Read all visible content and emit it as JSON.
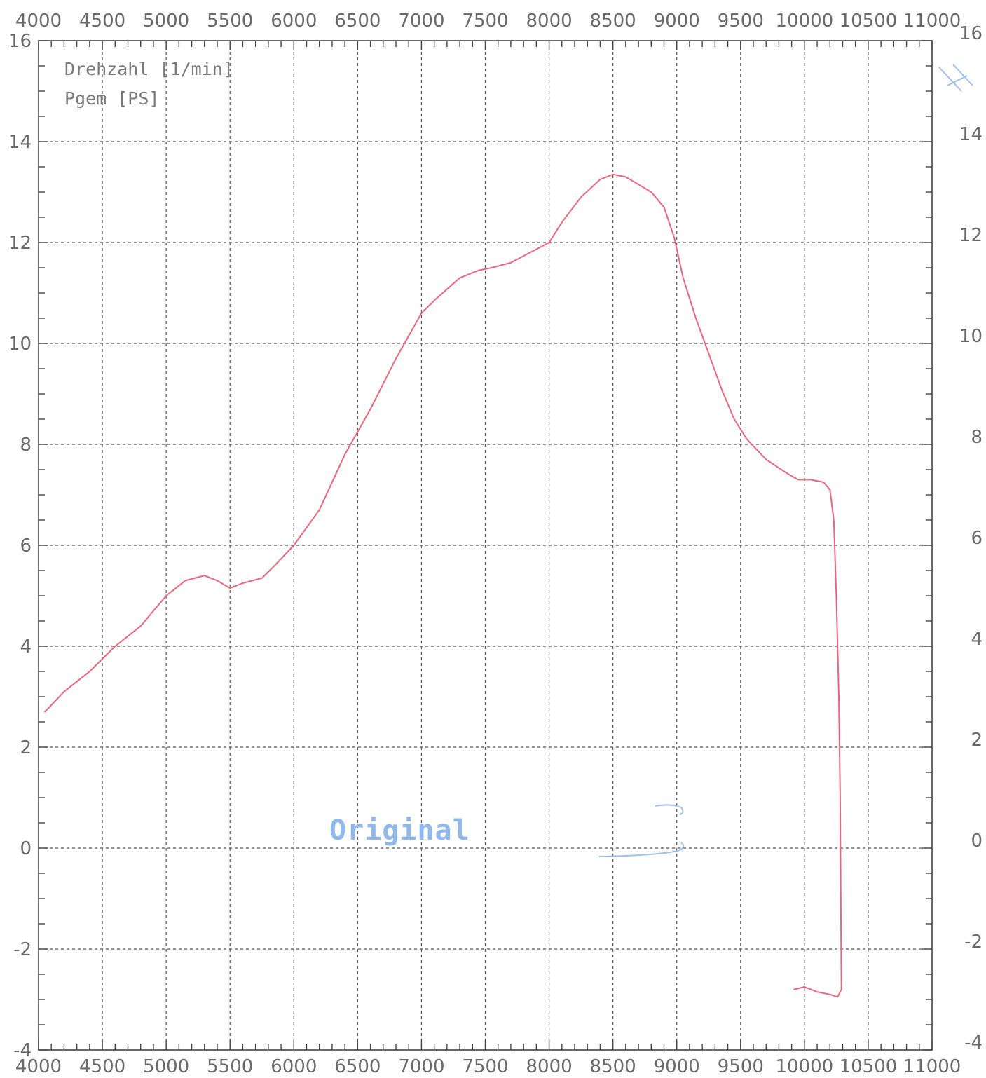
{
  "chart_data": {
    "type": "line",
    "title": "",
    "xlabel": "",
    "ylabel": "",
    "legend": {
      "placement": "top-left",
      "entries": [
        "Drehzahl [1/min]",
        "Pgem [PS]"
      ]
    },
    "annotation": "Original",
    "xlim": [
      4000,
      11000
    ],
    "ylim": [
      -4,
      16
    ],
    "grid": true,
    "x_ticks": [
      "4000",
      "4500",
      "5000",
      "5500",
      "6000",
      "6500",
      "7000",
      "7500",
      "8000",
      "8500",
      "9000",
      "9500",
      "10000",
      "10500",
      "11000"
    ],
    "y_ticks_left": [
      "16",
      "14",
      "12",
      "10",
      "8",
      "6",
      "4",
      "2",
      "0",
      "-2",
      "-4"
    ],
    "y_ticks_right": [
      "16",
      "14",
      "12",
      "10",
      "8",
      "6",
      "4",
      "2",
      "0",
      "-2",
      "-4"
    ],
    "series": [
      {
        "name": "Pgem [PS]",
        "color": "#e8677f",
        "x": [
          4050,
          4200,
          4400,
          4600,
          4800,
          5000,
          5150,
          5300,
          5400,
          5500,
          5600,
          5750,
          5850,
          6000,
          6200,
          6400,
          6600,
          6800,
          7000,
          7100,
          7300,
          7450,
          7550,
          7700,
          7850,
          8000,
          8100,
          8250,
          8400,
          8500,
          8600,
          8700,
          8800,
          8900,
          8980,
          9050,
          9150,
          9250,
          9350,
          9450,
          9550,
          9700,
          9850,
          9950,
          10050,
          10150,
          10200,
          10230,
          10250,
          10270,
          10280,
          10285,
          10290,
          10260,
          10200,
          10100,
          10000,
          9920
        ],
        "y": [
          2.7,
          3.1,
          3.5,
          4.0,
          4.4,
          5.0,
          5.3,
          5.4,
          5.3,
          5.15,
          5.25,
          5.35,
          5.6,
          6.0,
          6.7,
          7.8,
          8.7,
          9.7,
          10.6,
          10.85,
          11.3,
          11.45,
          11.5,
          11.6,
          11.8,
          12.0,
          12.4,
          12.9,
          13.25,
          13.35,
          13.3,
          13.15,
          13.0,
          12.7,
          12.1,
          11.3,
          10.5,
          9.8,
          9.1,
          8.5,
          8.1,
          7.7,
          7.45,
          7.3,
          7.3,
          7.25,
          7.1,
          6.5,
          5.0,
          3.0,
          1.0,
          -1.0,
          -2.8,
          -2.95,
          -2.9,
          -2.85,
          -2.75,
          -2.8
        ]
      }
    ]
  }
}
